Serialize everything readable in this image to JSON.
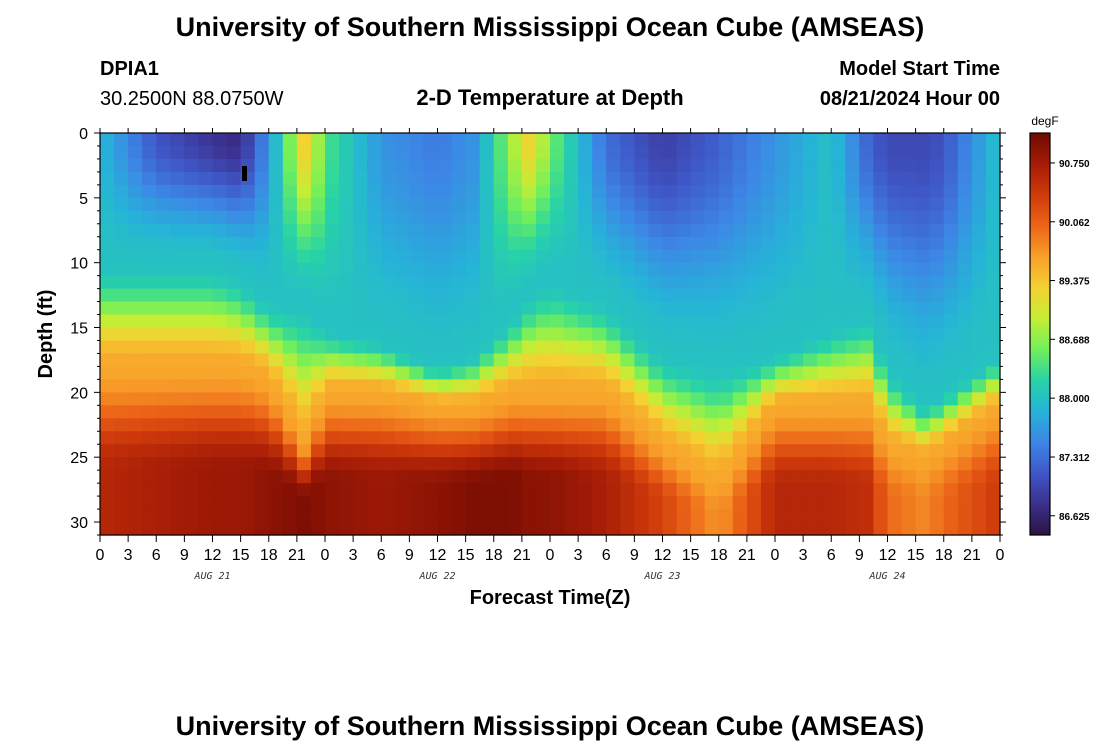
{
  "page": {
    "title": "University of Southern Mississippi Ocean Cube (AMSEAS)",
    "footer_title": "University of Southern Mississippi Ocean Cube (AMSEAS)"
  },
  "station": {
    "id": "DPIA1",
    "coords": "30.2500N  88.0750W"
  },
  "model": {
    "label": "Model Start Time",
    "start": "08/21/2024 Hour 00"
  },
  "chart_data": {
    "type": "heatmap",
    "title": "2-D Temperature at Depth",
    "xlabel": "Forecast Time(Z)",
    "ylabel": "Depth (ft)",
    "x_hours_range": [
      0,
      96
    ],
    "x_tick_step_hours": 3,
    "x_tick_labels": [
      "0",
      "3",
      "6",
      "9",
      "12",
      "15",
      "18",
      "21",
      "0",
      "3",
      "6",
      "9",
      "12",
      "15",
      "18",
      "21",
      "0",
      "3",
      "6",
      "9",
      "12",
      "15",
      "18",
      "21",
      "0",
      "3",
      "6",
      "9",
      "12",
      "15",
      "18",
      "21",
      "0"
    ],
    "day_labels": [
      {
        "label": "AUG 21",
        "hour": 12
      },
      {
        "label": "AUG 22",
        "hour": 36
      },
      {
        "label": "AUG 23",
        "hour": 60
      },
      {
        "label": "AUG 24",
        "hour": 84
      }
    ],
    "ylim": [
      0,
      31
    ],
    "y_ticks": [
      "0",
      "5",
      "10",
      "15",
      "20",
      "25",
      "30"
    ],
    "y_tick_values": [
      0,
      5,
      10,
      15,
      20,
      25,
      30
    ],
    "colorbar": {
      "unit": "degF",
      "range": [
        86.4,
        91.1
      ],
      "tick_labels": [
        "90.750",
        "90.062",
        "89.375",
        "88.688",
        "88.000",
        "87.312",
        "86.625"
      ],
      "tick_values": [
        90.75,
        90.062,
        89.375,
        88.688,
        88.0,
        87.312,
        86.625
      ],
      "colors": [
        "#2a1440",
        "#3b2f8c",
        "#3f57c7",
        "#3d86e6",
        "#26b3d8",
        "#27d3a6",
        "#72ef5b",
        "#c3ee35",
        "#f4d131",
        "#f8a02a",
        "#ec6518",
        "#cf3a0b",
        "#a51c06",
        "#6e0a02"
      ]
    },
    "surface_profile_hours": [
      0,
      6,
      12,
      15,
      18,
      22,
      24,
      30,
      36,
      40,
      44,
      46,
      48,
      54,
      60,
      66,
      72,
      78,
      82,
      84,
      88,
      90,
      96
    ],
    "surface_profile_degF": [
      87.9,
      87.1,
      86.8,
      86.7,
      87.6,
      89.4,
      88.4,
      87.6,
      87.4,
      87.6,
      88.8,
      89.3,
      88.6,
      87.3,
      86.9,
      87.2,
      87.6,
      88.0,
      87.2,
      87.0,
      87.0,
      87.1,
      88.0
    ],
    "thermocline_top_ft": [
      10,
      10,
      10,
      11,
      13,
      13,
      15,
      16,
      18,
      17,
      14,
      12,
      11,
      13,
      17,
      18,
      17,
      15,
      14,
      18,
      21,
      20,
      17
    ],
    "warm_layer_top_ft": [
      18,
      18,
      18,
      18,
      19,
      24,
      20,
      20,
      21,
      21,
      20,
      20,
      20,
      20,
      24,
      27,
      21,
      21,
      21,
      24,
      25,
      24,
      21
    ],
    "bottom_degF": [
      90.6,
      90.7,
      90.8,
      90.8,
      90.9,
      91.0,
      90.9,
      90.8,
      90.9,
      91.0,
      91.0,
      90.9,
      90.9,
      90.7,
      90.3,
      89.7,
      90.6,
      90.6,
      90.5,
      90.0,
      89.8,
      90.0,
      90.4
    ]
  }
}
